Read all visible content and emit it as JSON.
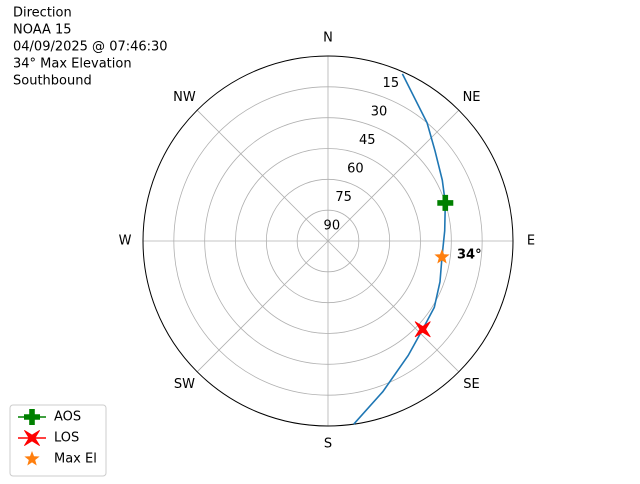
{
  "chart_data": {
    "type": "polar",
    "title_lines": [
      "Direction",
      "NOAA 15",
      "04/09/2025 @ 07:46:30",
      "34° Max Elevation",
      "Southbound"
    ],
    "xticks": [
      {
        "value": 0,
        "label": "N"
      },
      {
        "value": 45,
        "label": "NE"
      },
      {
        "value": 90,
        "label": "E"
      },
      {
        "value": 135,
        "label": "SE"
      },
      {
        "value": 180,
        "label": "S"
      },
      {
        "value": 225,
        "label": "SW"
      },
      {
        "value": 270,
        "label": "W"
      },
      {
        "value": 315,
        "label": "NW"
      }
    ],
    "rlim": [
      90,
      0
    ],
    "rticks": [
      15,
      30,
      45,
      60,
      75,
      90
    ],
    "grid": true,
    "legend": "lower left",
    "track": {
      "color": "#1f77b4",
      "azimuth": [
        24,
        40,
        50,
        62,
        72,
        85,
        98,
        110,
        122,
        133,
        145,
        160,
        172
      ],
      "elevation": [
        1,
        15,
        22,
        27,
        30,
        33,
        34,
        32,
        29,
        27,
        22,
        12,
        0
      ]
    },
    "series": [
      {
        "name": "AOS",
        "color": "#008000",
        "marker": "plus",
        "azimuth": [
          72
        ],
        "elevation": [
          30
        ]
      },
      {
        "name": "LOS",
        "color": "#ff0000",
        "marker": "x",
        "azimuth": [
          133
        ],
        "elevation": [
          27
        ]
      },
      {
        "name": "Max El",
        "color": "#ff7f0e",
        "marker": "star",
        "azimuth": [
          98
        ],
        "elevation": [
          34
        ]
      }
    ],
    "annotations": [
      {
        "text": "34°",
        "series": 2
      }
    ]
  }
}
